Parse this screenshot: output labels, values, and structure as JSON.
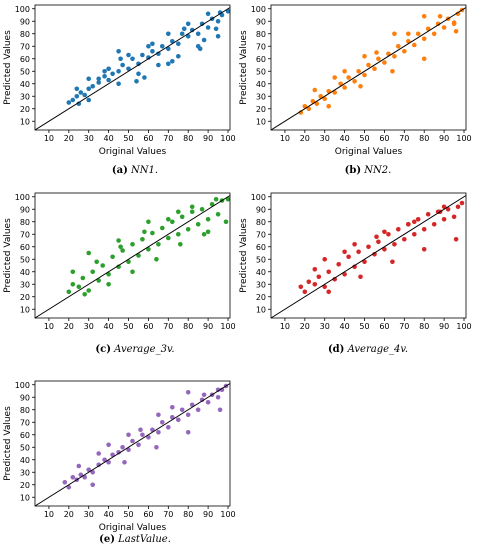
{
  "chart_data": [
    {
      "type": "scatter",
      "color": "#1f77b4",
      "caption_label": "(a)",
      "caption_name": "NN1.",
      "xlabel": "Original Values",
      "ylabel": "Predicted Values",
      "xlim": [
        3,
        101
      ],
      "ylim": [
        3,
        103
      ],
      "xticks": [
        10,
        20,
        30,
        40,
        50,
        60,
        70,
        80,
        90,
        100
      ],
      "yticks": [
        10,
        20,
        30,
        40,
        50,
        60,
        70,
        80,
        90,
        100
      ],
      "reference_line": {
        "from": [
          3,
          3
        ],
        "to": [
          101,
          101
        ]
      },
      "grid": false,
      "series": [
        {
          "x": [
            20,
            22,
            24,
            25,
            26,
            28,
            30,
            32,
            35,
            38,
            40,
            42,
            45,
            47,
            50,
            52,
            55,
            57,
            60,
            62,
            65,
            67,
            70,
            72,
            75,
            77,
            80,
            82,
            85,
            87,
            90,
            92,
            95,
            97,
            100,
            24,
            30,
            35,
            40,
            45,
            50,
            55,
            60,
            65,
            70,
            75,
            80,
            85,
            90,
            95,
            30,
            38,
            46,
            54,
            62,
            70,
            78,
            86,
            94,
            45,
            58,
            72,
            88,
            96
          ],
          "y": [
            25,
            27,
            30,
            24,
            33,
            31,
            36,
            38,
            41,
            46,
            43,
            48,
            50,
            55,
            52,
            60,
            56,
            63,
            61,
            66,
            64,
            70,
            68,
            74,
            72,
            80,
            78,
            83,
            80,
            88,
            85,
            92,
            90,
            95,
            98,
            36,
            27,
            44,
            52,
            40,
            63,
            48,
            70,
            55,
            80,
            62,
            88,
            70,
            96,
            78,
            44,
            50,
            60,
            42,
            72,
            56,
            84,
            68,
            84,
            66,
            45,
            58,
            75,
            97
          ]
        }
      ]
    },
    {
      "type": "scatter",
      "color": "#ff7f0e",
      "caption_label": "(b)",
      "caption_name": "NN2.",
      "xlabel": "Original Values",
      "ylabel": "Predicted Values",
      "xlim": [
        3,
        101
      ],
      "ylim": [
        3,
        103
      ],
      "xticks": [
        10,
        20,
        30,
        40,
        50,
        60,
        70,
        80,
        90,
        100
      ],
      "yticks": [
        10,
        20,
        30,
        40,
        50,
        60,
        70,
        80,
        90,
        100
      ],
      "reference_line": {
        "from": [
          3,
          3
        ],
        "to": [
          101,
          101
        ]
      },
      "grid": false,
      "series": [
        {
          "x": [
            18,
            20,
            22,
            24,
            26,
            28,
            30,
            32,
            35,
            38,
            40,
            42,
            45,
            47,
            50,
            52,
            55,
            57,
            60,
            62,
            65,
            67,
            70,
            72,
            75,
            77,
            80,
            82,
            85,
            87,
            90,
            92,
            95,
            97,
            99,
            25,
            32,
            40,
            48,
            56,
            64,
            72,
            80,
            88,
            96,
            35,
            50,
            65,
            80,
            95
          ],
          "y": [
            17,
            22,
            20,
            26,
            24,
            30,
            28,
            34,
            33,
            40,
            37,
            45,
            42,
            50,
            47,
            55,
            52,
            60,
            57,
            64,
            62,
            70,
            66,
            74,
            71,
            80,
            76,
            84,
            80,
            88,
            85,
            92,
            89,
            96,
            99,
            35,
            22,
            50,
            38,
            65,
            50,
            80,
            60,
            94,
            82,
            45,
            62,
            80,
            94,
            88
          ]
        }
      ]
    },
    {
      "type": "scatter",
      "color": "#2ca02c",
      "caption_label": "(c)",
      "caption_name": "Average_3v.",
      "xlabel": "",
      "ylabel": "Predicted Values",
      "xlim": [
        3,
        101
      ],
      "ylim": [
        3,
        103
      ],
      "xticks": [
        10,
        20,
        30,
        40,
        50,
        60,
        70,
        80,
        90,
        100
      ],
      "yticks": [
        10,
        20,
        30,
        40,
        50,
        60,
        70,
        80,
        90,
        100
      ],
      "reference_line": {
        "from": [
          3,
          3
        ],
        "to": [
          101,
          101
        ]
      },
      "grid": false,
      "series": [
        {
          "x": [
            20,
            22,
            25,
            27,
            30,
            32,
            35,
            37,
            40,
            42,
            45,
            47,
            50,
            52,
            55,
            57,
            60,
            62,
            65,
            67,
            70,
            72,
            75,
            77,
            80,
            82,
            85,
            87,
            90,
            92,
            95,
            97,
            100,
            22,
            28,
            34,
            40,
            46,
            52,
            58,
            64,
            70,
            76,
            82,
            88,
            94,
            99,
            30,
            45,
            60,
            75,
            90
          ],
          "y": [
            24,
            30,
            28,
            35,
            25,
            40,
            33,
            45,
            38,
            52,
            44,
            57,
            48,
            62,
            53,
            66,
            58,
            71,
            62,
            75,
            67,
            80,
            70,
            84,
            74,
            88,
            78,
            90,
            82,
            94,
            86,
            97,
            98,
            40,
            22,
            48,
            30,
            60,
            40,
            72,
            50,
            82,
            62,
            92,
            70,
            98,
            80,
            55,
            65,
            80,
            88,
            72
          ]
        }
      ]
    },
    {
      "type": "scatter",
      "color": "#d62728",
      "caption_label": "(d)",
      "caption_name": "Average_4v.",
      "xlabel": "",
      "ylabel": "Predicted Values",
      "xlim": [
        3,
        101
      ],
      "ylim": [
        3,
        103
      ],
      "xticks": [
        10,
        20,
        30,
        40,
        50,
        60,
        70,
        80,
        90,
        100
      ],
      "yticks": [
        10,
        20,
        30,
        40,
        50,
        60,
        70,
        80,
        90,
        100
      ],
      "reference_line": {
        "from": [
          3,
          3
        ],
        "to": [
          101,
          101
        ]
      },
      "grid": false,
      "series": [
        {
          "x": [
            18,
            20,
            22,
            25,
            27,
            30,
            32,
            35,
            37,
            40,
            42,
            45,
            47,
            50,
            52,
            55,
            57,
            60,
            62,
            65,
            67,
            70,
            72,
            75,
            77,
            80,
            82,
            85,
            87,
            90,
            92,
            95,
            97,
            99,
            25,
            32,
            40,
            48,
            56,
            64,
            72,
            80,
            88,
            96,
            30,
            45,
            60,
            75,
            90
          ],
          "y": [
            28,
            24,
            32,
            30,
            36,
            28,
            40,
            34,
            46,
            38,
            52,
            44,
            56,
            48,
            60,
            54,
            64,
            58,
            70,
            62,
            74,
            66,
            78,
            70,
            82,
            74,
            86,
            78,
            88,
            82,
            90,
            84,
            92,
            95,
            42,
            24,
            56,
            36,
            68,
            48,
            78,
            58,
            88,
            66,
            50,
            62,
            72,
            80,
            92
          ]
        }
      ]
    },
    {
      "type": "scatter",
      "color": "#9467bd",
      "caption_label": "(e)",
      "caption_name": "LastValue.",
      "xlabel": "Original Values",
      "ylabel": "Predicted Values",
      "xlim": [
        3,
        101
      ],
      "ylim": [
        3,
        103
      ],
      "xticks": [
        10,
        20,
        30,
        40,
        50,
        60,
        70,
        80,
        90,
        100
      ],
      "yticks": [
        10,
        20,
        30,
        40,
        50,
        60,
        70,
        80,
        90,
        100
      ],
      "reference_line": {
        "from": [
          3,
          3
        ],
        "to": [
          101,
          101
        ]
      },
      "grid": false,
      "series": [
        {
          "x": [
            18,
            20,
            22,
            24,
            26,
            28,
            30,
            32,
            35,
            38,
            40,
            42,
            45,
            47,
            50,
            52,
            55,
            57,
            60,
            62,
            65,
            67,
            70,
            72,
            75,
            77,
            80,
            82,
            85,
            87,
            90,
            92,
            95,
            97,
            99,
            25,
            32,
            40,
            48,
            56,
            64,
            72,
            80,
            88,
            96,
            35,
            50,
            65,
            80,
            95
          ],
          "y": [
            22,
            18,
            26,
            24,
            28,
            26,
            32,
            30,
            36,
            40,
            38,
            44,
            46,
            50,
            48,
            55,
            52,
            60,
            58,
            64,
            62,
            70,
            66,
            74,
            72,
            80,
            76,
            84,
            80,
            88,
            86,
            92,
            90,
            96,
            99,
            35,
            20,
            52,
            38,
            64,
            50,
            82,
            62,
            92,
            80,
            45,
            60,
            76,
            94,
            96
          ]
        }
      ]
    }
  ]
}
